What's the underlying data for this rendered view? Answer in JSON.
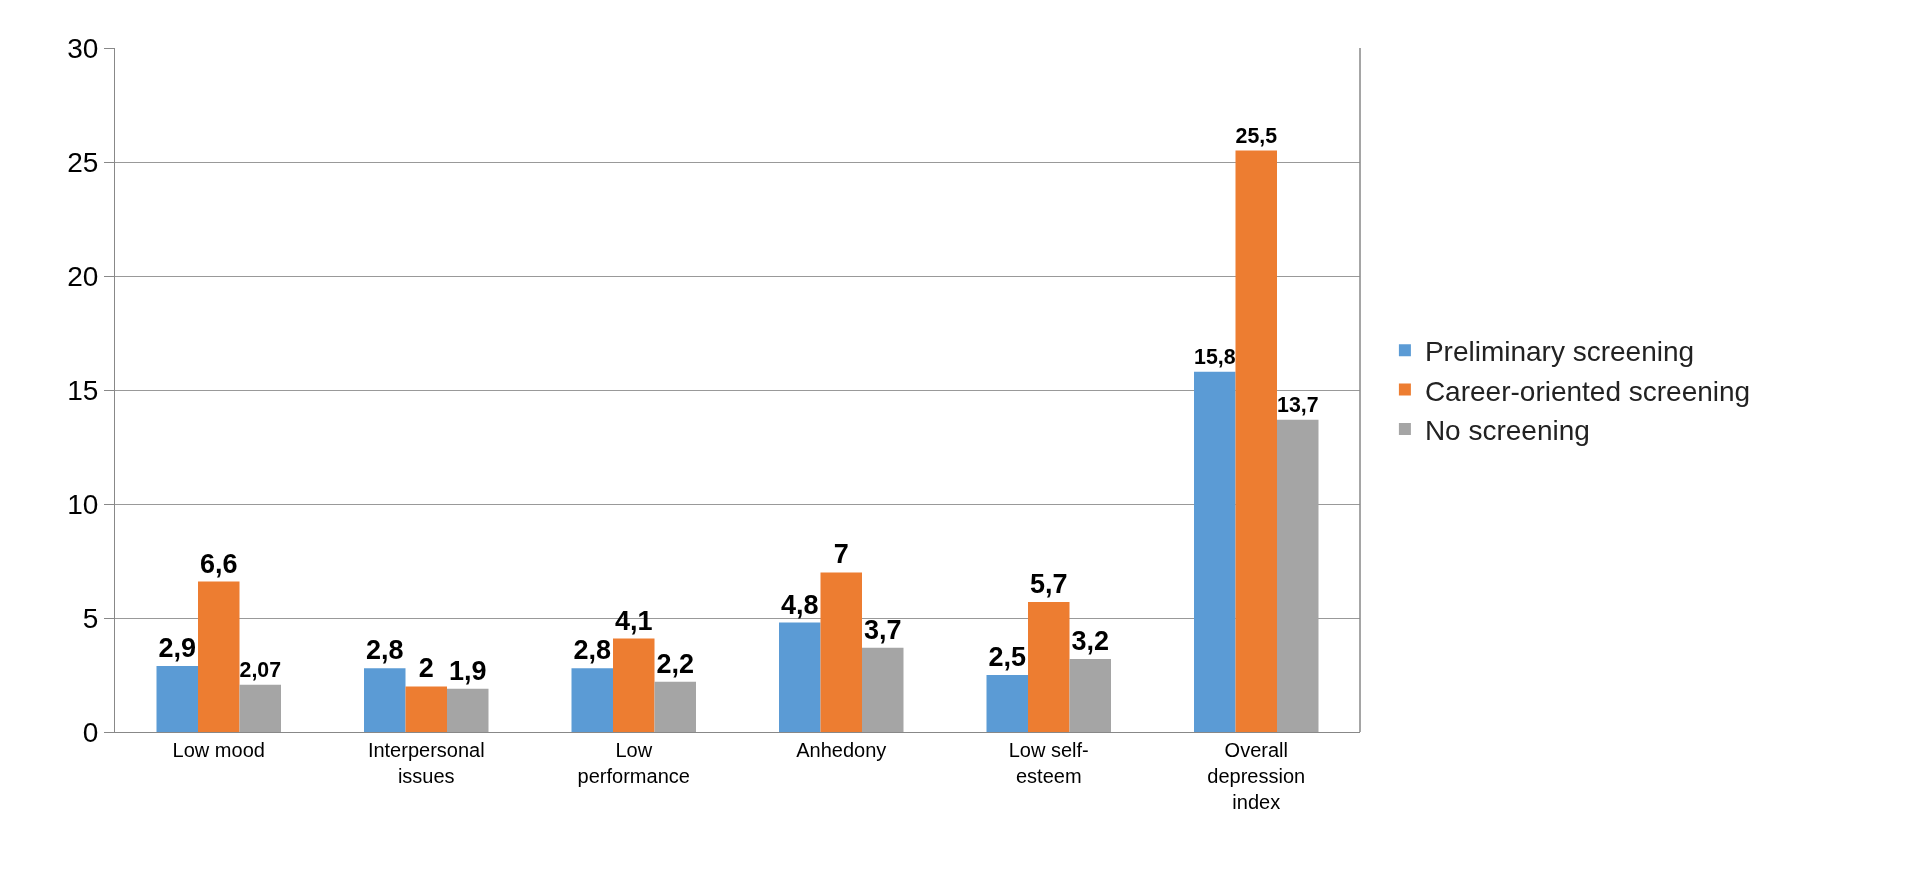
{
  "chart_data": {
    "type": "bar",
    "categories": [
      "Low mood",
      "Interpersonal issues",
      "Low performance",
      "Anhedony",
      "Low self-esteem",
      "Overall depression index"
    ],
    "series": [
      {
        "name": "Preliminary screening",
        "color": "#5b9bd5",
        "values": [
          2.9,
          2.8,
          2.8,
          4.8,
          2.5,
          15.8
        ],
        "value_labels": [
          "2,9",
          "2,8",
          "2,8",
          "4,8",
          "2,5",
          "15,8"
        ]
      },
      {
        "name": "Career-oriented screening",
        "color": "#ed7d31",
        "values": [
          6.6,
          2,
          4.1,
          7,
          5.7,
          25.5
        ],
        "value_labels": [
          "6,6",
          "2",
          "4,1",
          "7",
          "5,7",
          "25,5"
        ]
      },
      {
        "name": "No screening",
        "color": "#a5a5a5",
        "values": [
          2.07,
          1.9,
          2.2,
          3.7,
          3.2,
          13.7
        ],
        "value_labels": [
          "2,07",
          "1,9",
          "2,2",
          "3,7",
          "3,2",
          "13,7"
        ]
      }
    ],
    "ylim": [
      0,
      30
    ],
    "yticks": [
      0,
      5,
      10,
      15,
      20,
      25,
      30
    ],
    "grid": "y",
    "legend": "right"
  }
}
